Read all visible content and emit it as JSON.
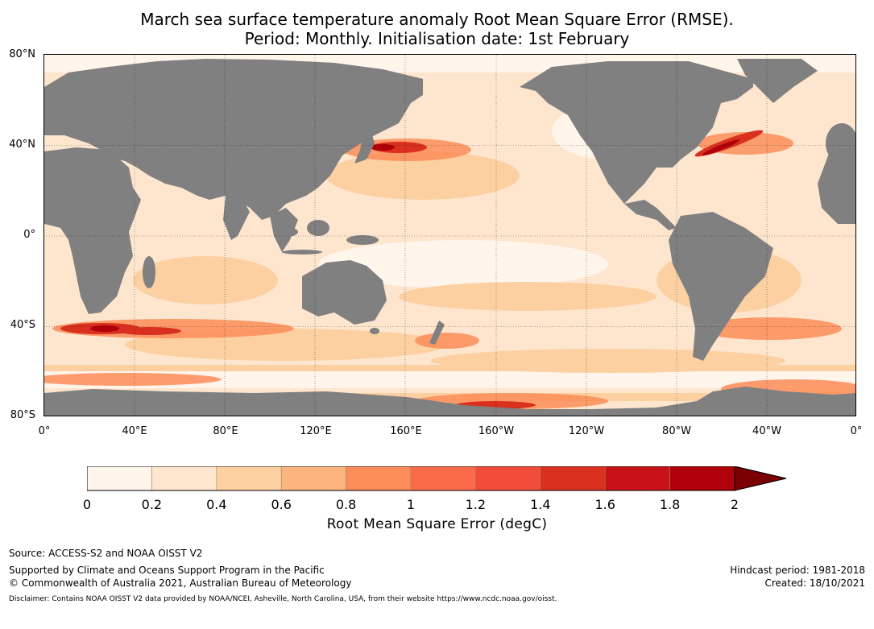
{
  "title": {
    "line1": "March sea surface temperature anomaly Root Mean Square Error (RMSE).",
    "line2": "Period: Monthly. Initialisation date: 1st February"
  },
  "map": {
    "lat_labels": [
      "80°N",
      "40°N",
      "0°",
      "40°S",
      "80°S"
    ],
    "lon_labels": [
      "0°",
      "40°E",
      "80°E",
      "120°E",
      "160°E",
      "160°W",
      "120°W",
      "80°W",
      "40°W",
      "0°"
    ],
    "land_color": "#808080",
    "ocean_base_color": "#fee6ce"
  },
  "colorbar": {
    "ticks": [
      "0",
      "0.2",
      "0.4",
      "0.6",
      "0.8",
      "1",
      "1.2",
      "1.4",
      "1.6",
      "1.8",
      "2"
    ],
    "colors": [
      "#fff5eb",
      "#fee6ce",
      "#fdd0a2",
      "#fdb57f",
      "#fc8d59",
      "#fb6a4a",
      "#f34c3b",
      "#d9301f",
      "#c91217",
      "#b00009",
      "#7a0004"
    ],
    "label": "Root Mean Square Error (degC)",
    "extend": "max"
  },
  "footer": {
    "source": "Source: ACCESS-S2 and NOAA OISST V2",
    "supported": "Supported by Climate and Oceans Support Program in the Pacific",
    "copyright": "© Commonwealth of Australia 2021, Australian Bureau of Meteorology",
    "hindcast": "Hindcast period: 1981-2018",
    "created": "Created: 18/10/2021",
    "disclaimer": "Disclaimer: Contains NOAA OISST V2 data provided by NOAA/NCEI, Asheville, North Carolina, USA, from their website https://www.ncdc.noaa.gov/oisst."
  }
}
